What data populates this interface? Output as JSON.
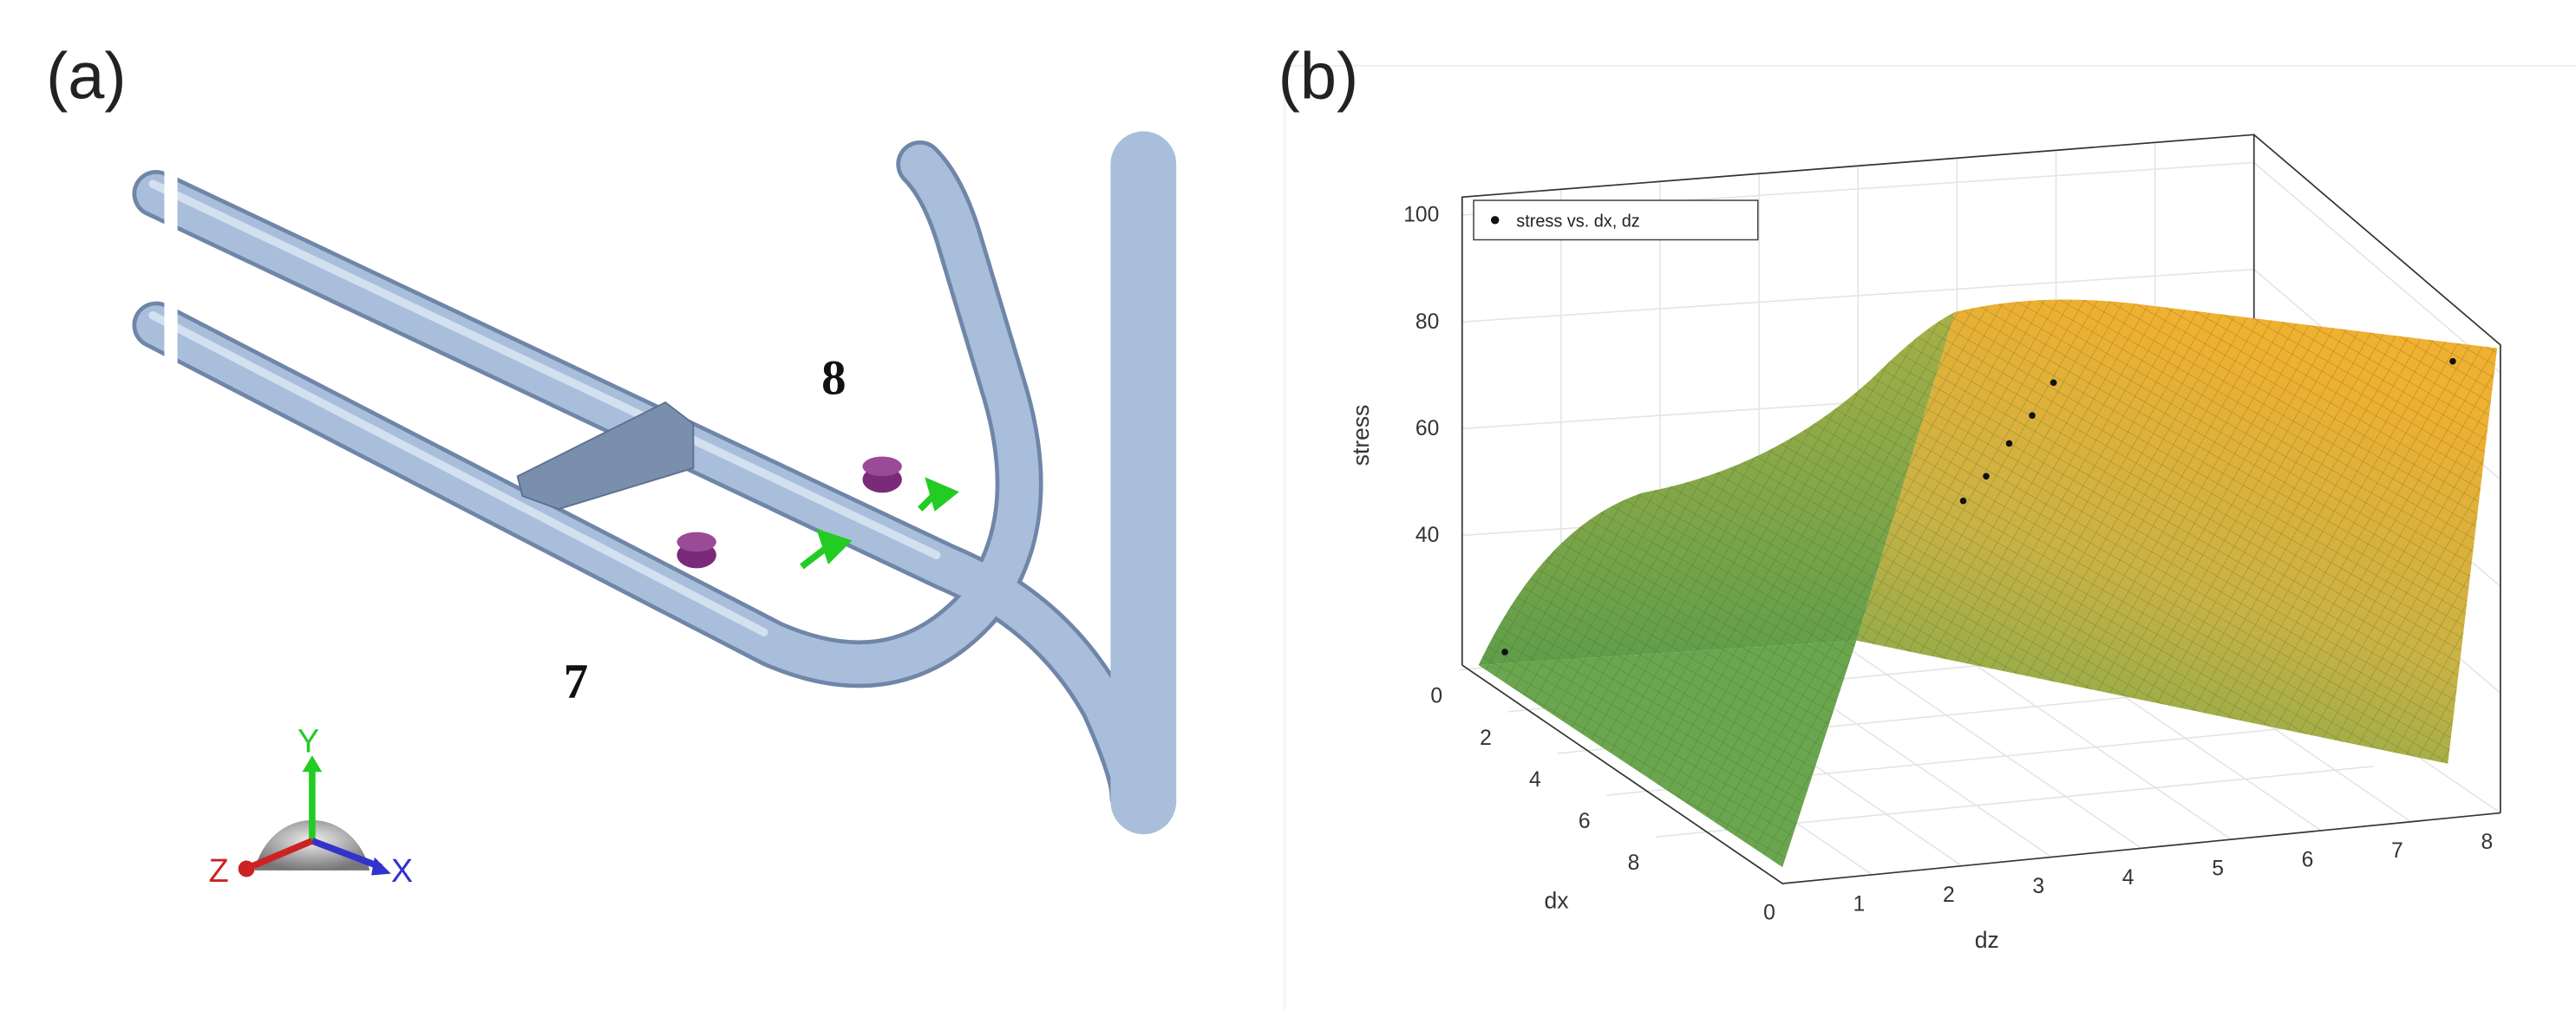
{
  "panel_a": {
    "label": "(a)",
    "annotations": [
      "8",
      "7"
    ],
    "triad": {
      "y": "Y",
      "z": "Z",
      "x": "X"
    }
  },
  "panel_b": {
    "label": "(b)",
    "legend": "stress vs. dx, dz",
    "axes": {
      "z_label": "stress",
      "dx_label": "dx",
      "dz_label": "dz",
      "z_ticks": [
        40,
        60,
        80,
        100
      ],
      "dx_ticks": [
        0,
        2,
        4,
        6,
        8
      ],
      "dz_ticks": [
        0,
        1,
        2,
        3,
        4,
        5,
        6,
        7,
        8
      ]
    }
  }
}
